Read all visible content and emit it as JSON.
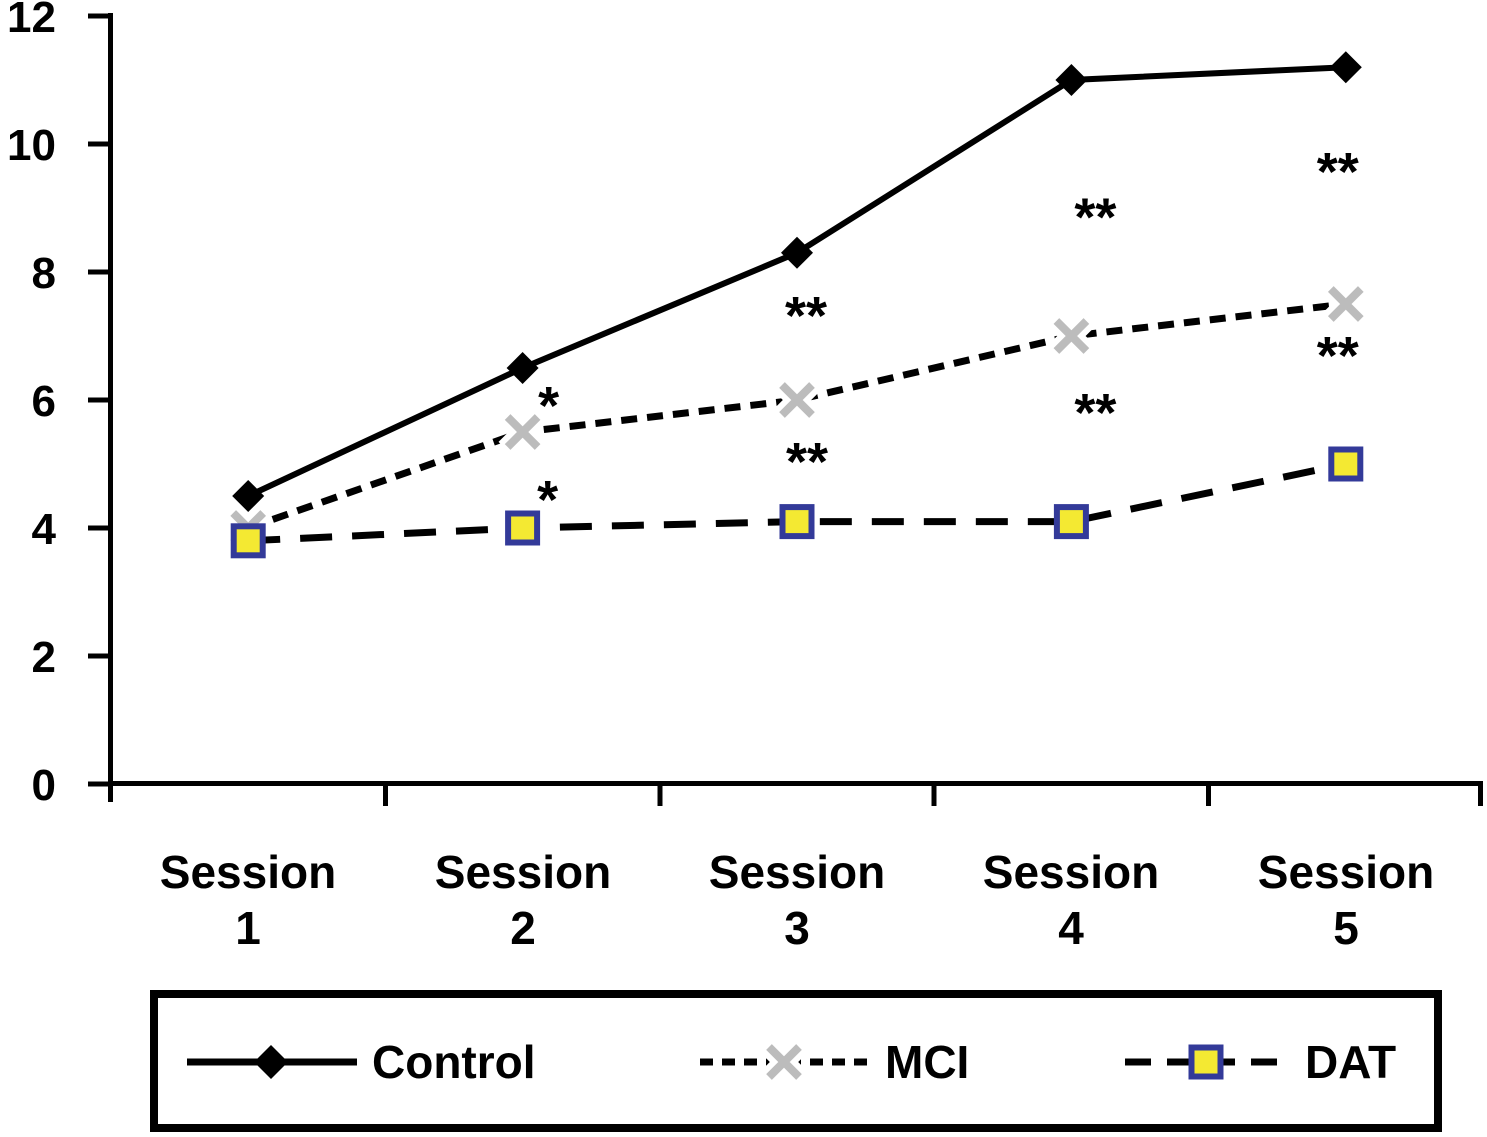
{
  "chart_data": {
    "type": "line",
    "title": "",
    "xlabel": "",
    "ylabel": "",
    "ylim": [
      0,
      12
    ],
    "yticks": [
      0,
      2,
      4,
      6,
      8,
      10,
      12
    ],
    "grid": false,
    "category_labels": [
      "Session 1",
      "Session 2",
      "Session 3",
      "Session 4",
      "Session 5"
    ],
    "categories": [
      {
        "line1": "Session",
        "line2": "1"
      },
      {
        "line1": "Session",
        "line2": "2"
      },
      {
        "line1": "Session",
        "line2": "3"
      },
      {
        "line1": "Session",
        "line2": "4"
      },
      {
        "line1": "Session",
        "line2": "5"
      }
    ],
    "series": [
      {
        "name": "Control",
        "line_style": "solid",
        "line_color": "#000000",
        "marker": "diamond",
        "marker_color": "#000000",
        "values": [
          4.5,
          6.5,
          8.3,
          11.0,
          11.2
        ]
      },
      {
        "name": "MCI",
        "line_style": "dashed",
        "line_color": "#000000",
        "marker": "x-cross",
        "marker_color": "#bcbcbc",
        "values": [
          4.0,
          5.5,
          6.0,
          7.0,
          7.5
        ]
      },
      {
        "name": "DAT",
        "line_style": "long-dash",
        "line_color": "#000000",
        "marker": "square",
        "marker_fill": "#f4e932",
        "marker_border": "#333a99",
        "values": [
          3.8,
          4.0,
          4.1,
          4.1,
          5.0
        ]
      }
    ],
    "annotations": [
      {
        "text": "*",
        "series": "MCI",
        "session": 2,
        "value": 6.05,
        "dx": 26
      },
      {
        "text": "*",
        "series": "DAT",
        "session": 2,
        "value": 4.58,
        "dx": 25
      },
      {
        "text": "**",
        "series": "MCI",
        "session": 3,
        "value": 7.45,
        "dx": 9
      },
      {
        "text": "**",
        "series": "DAT",
        "session": 3,
        "value": 5.17,
        "dx": 10
      },
      {
        "text": "**",
        "series": "MCI",
        "session": 4,
        "value": 8.99,
        "dx": 24
      },
      {
        "text": "**",
        "series": "DAT",
        "session": 4,
        "value": 5.94,
        "dx": 24
      },
      {
        "text": "**",
        "series": "MCI",
        "session": 5,
        "value": 9.7,
        "dx": -8
      },
      {
        "text": "**",
        "series": "DAT",
        "session": 5,
        "value": 6.83,
        "dx": -8
      }
    ],
    "legend": {
      "position": "bottom",
      "box": true
    }
  }
}
